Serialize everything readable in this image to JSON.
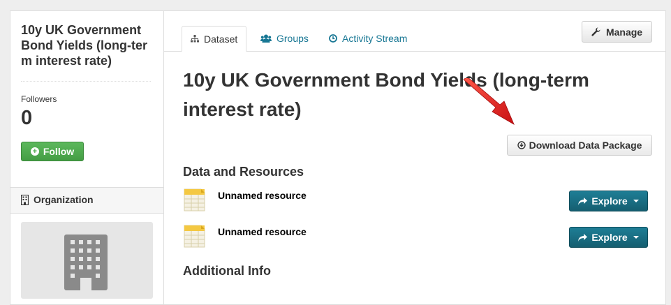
{
  "aside": {
    "title": "10y UK Government Bond Yields (long-term interest rate)",
    "followers_label": "Followers",
    "followers_count": "0",
    "follow_label": "Follow",
    "organization_label": "Organization"
  },
  "tabs": [
    {
      "label": "Dataset",
      "icon": "sitemap-icon"
    },
    {
      "label": "Groups",
      "icon": "users-icon"
    },
    {
      "label": "Activity Stream",
      "icon": "clock-icon"
    }
  ],
  "manage_label": "Manage",
  "dataset_title": "10y UK Government Bond Yields (long-term interest rate)",
  "download_label": "Download Data Package",
  "resources_heading": "Data and Resources",
  "resources": [
    {
      "name": "Unnamed resource",
      "format": "CSV",
      "explore_label": "Explore"
    },
    {
      "name": "Unnamed resource",
      "format": "CSV",
      "explore_label": "Explore"
    }
  ],
  "additional_info_heading": "Additional Info",
  "colors": {
    "accent": "#187794",
    "follow": "#5cb85c",
    "explore": "#1e7e96",
    "arrow": "#e0201f"
  }
}
